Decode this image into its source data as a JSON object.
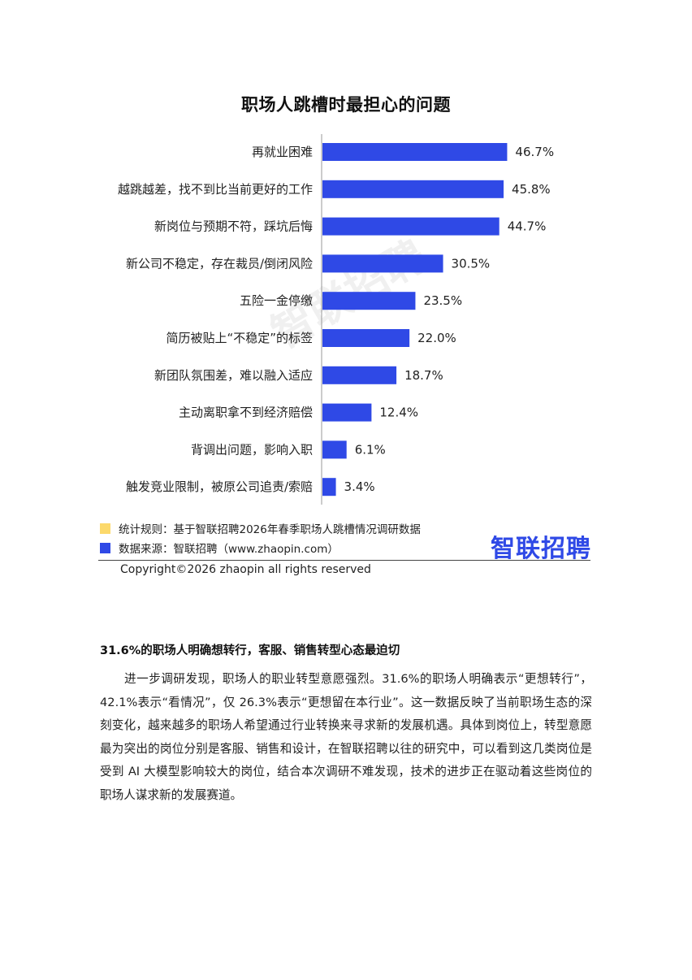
{
  "chart_data": {
    "type": "bar",
    "orientation": "horizontal",
    "title": "职场人跳槽时最担心的问题",
    "categories": [
      "再就业困难",
      "越跳越差，找不到比当前更好的工作",
      "新岗位与预期不符，踩坑后悔",
      "新公司不稳定，存在裁员/倒闭风险",
      "五险一金停缴",
      "简历被贴上“不稳定”的标签",
      "新团队氛围差，难以融入适应",
      "主动离职拿不到经济赔偿",
      "背调出问题，影响入职",
      "触发竞业限制，被原公司追责/索赔"
    ],
    "values": [
      46.7,
      45.8,
      44.7,
      30.5,
      23.5,
      22.0,
      18.7,
      12.4,
      6.1,
      3.4
    ],
    "value_labels": [
      "46.7%",
      "45.8%",
      "44.7%",
      "30.5%",
      "23.5%",
      "22.0%",
      "18.7%",
      "12.4%",
      "6.1%",
      "3.4%"
    ],
    "unit": "%",
    "xlim": [
      0,
      50
    ],
    "grid": false,
    "bar_color": "#2f49e6"
  },
  "footnotes": [
    {
      "text": "统计规则：基于智联招聘2026年春季职场人跳槽情况调研数据",
      "color": "#fcd96b"
    },
    {
      "text": "数据来源：智联招聘（www.zhaopin.com）",
      "color": "#2f49e6"
    }
  ],
  "logo_text": "智联招聘",
  "watermark_text": "智联招聘",
  "copyright": "Copyright©2026 zhaopin all rights reserved",
  "section_heading": "31.6%的职场人明确想转行，客服、销售转型心态最迫切",
  "body_paragraph": "进一步调研发现，职场人的职业转型意愿强烈。31.6%的职场人明确表示“更想转行”，42.1%表示“看情况”，仅 26.3%表示“更想留在本行业”。这一数据反映了当前职场生态的深刻变化，越来越多的职场人希望通过行业转换来寻求新的发展机遇。具体到岗位上，转型意愿最为突出的岗位分别是客服、销售和设计，在智联招聘以往的研究中，可以看到这几类岗位是受到 AI 大模型影响较大的岗位，结合本次调研不难发现，技术的进步正在驱动着这些岗位的职场人谋求新的发展赛道。"
}
